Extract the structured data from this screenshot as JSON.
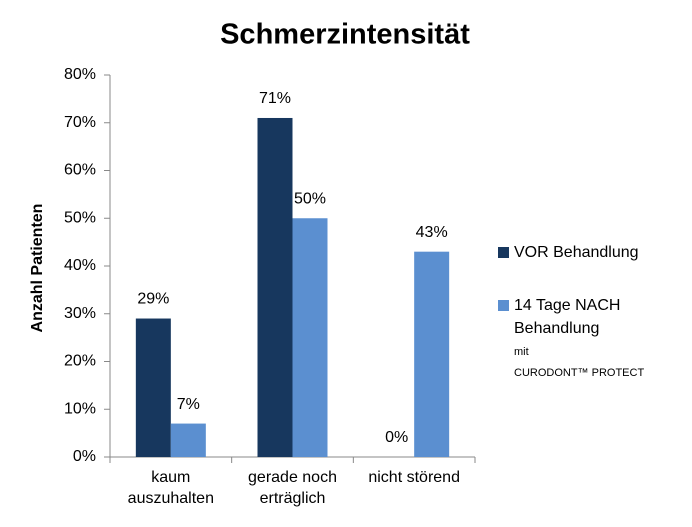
{
  "chart_data": {
    "type": "bar",
    "title": "Schmerzintensität",
    "y_label": "Anzahl Patienten",
    "categories": [
      "kaum\nauszuhalten",
      "gerade noch\nerträglich",
      "nicht störend"
    ],
    "series": [
      {
        "name": "VOR Behandlung",
        "color": "#17375e",
        "values": [
          29,
          71,
          0
        ],
        "value_labels": [
          "29%",
          "71%",
          "0%"
        ]
      },
      {
        "name": "14 Tage NACH\nBehandlung",
        "color": "#5b8fd0",
        "values": [
          7,
          50,
          43
        ],
        "value_labels": [
          "7%",
          "50%",
          "43%"
        ]
      }
    ],
    "legend_note": [
      "mit",
      "CURODONT™ PROTECT"
    ],
    "ylim": [
      0,
      80
    ],
    "yticks": [
      {
        "value": 0,
        "label": "0%"
      },
      {
        "value": 10,
        "label": "10%"
      },
      {
        "value": 20,
        "label": "20%"
      },
      {
        "value": 30,
        "label": "30%"
      },
      {
        "value": 40,
        "label": "40%"
      },
      {
        "value": 50,
        "label": "50%"
      },
      {
        "value": 60,
        "label": "60%"
      },
      {
        "value": 70,
        "label": "70%"
      },
      {
        "value": 80,
        "label": "80%"
      }
    ],
    "grid": false,
    "legend": "right"
  }
}
